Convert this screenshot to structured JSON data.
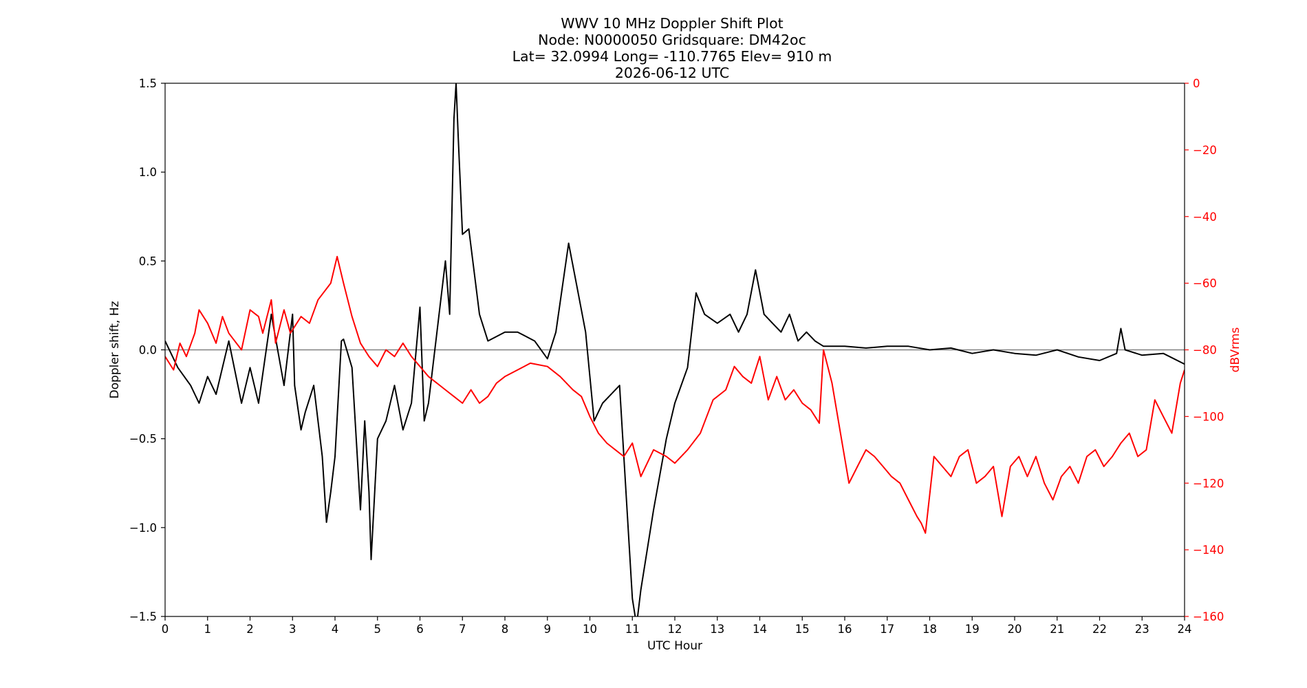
{
  "chart_data": {
    "type": "line",
    "title_lines": [
      "WWV 10 MHz Doppler Shift Plot",
      "Node:  N0000050     Gridsquare:  DM42oc",
      "Lat= 32.0994    Long= -110.7765    Elev= 910 m",
      "2026-06-12  UTC"
    ],
    "xlabel": "UTC Hour",
    "ylabel_left": "Doppler shift, Hz",
    "ylabel_right": "dBVrms",
    "xlim": [
      0,
      24
    ],
    "ylim_left": [
      -1.5,
      1.5
    ],
    "ylim_right": [
      -160,
      0
    ],
    "x_ticks": [
      "0",
      "1",
      "2",
      "3",
      "4",
      "5",
      "6",
      "7",
      "8",
      "9",
      "10",
      "11",
      "12",
      "13",
      "14",
      "15",
      "16",
      "17",
      "18",
      "19",
      "20",
      "21",
      "22",
      "23",
      "24"
    ],
    "y_ticks_left": [
      "1.5",
      "1.0",
      "0.5",
      "0.0",
      "−0.5",
      "−1.0",
      "−1.5"
    ],
    "y_ticks_right": [
      "0",
      "−20",
      "−40",
      "−60",
      "−80",
      "−100",
      "−120",
      "−140",
      "−160"
    ],
    "zero_line": 0.0,
    "colors": {
      "doppler": "#000000",
      "power": "#ff0000",
      "zero_line": "#808080"
    },
    "series": [
      {
        "axis": "left",
        "x": [
          0,
          0.3,
          0.6,
          0.8,
          1,
          1.2,
          1.5,
          1.8,
          2,
          2.2,
          2.5,
          2.8,
          3,
          3.05,
          3.2,
          3.3,
          3.5,
          3.7,
          3.8,
          3.9,
          4,
          4.15,
          4.2,
          4.4,
          4.6,
          4.7,
          4.8,
          4.85,
          5,
          5.2,
          5.4,
          5.6,
          5.8,
          6,
          6.1,
          6.2,
          6.4,
          6.6,
          6.7,
          6.8,
          6.85,
          6.9,
          7,
          7.15,
          7.4,
          7.6,
          8,
          8.3,
          8.7,
          9,
          9.2,
          9.5,
          9.7,
          9.9,
          10.1,
          10.3,
          10.5,
          10.7,
          10.9,
          11.0,
          11.1,
          11.2,
          11.5,
          11.8,
          12,
          12.3,
          12.5,
          12.7,
          13,
          13.3,
          13.5,
          13.7,
          13.9,
          14.1,
          14.3,
          14.5,
          14.7,
          14.9,
          15.1,
          15.3,
          15.5,
          16,
          16.5,
          17,
          17.5,
          18,
          18.5,
          19,
          19.5,
          20,
          20.5,
          21,
          21.5,
          22,
          22.4,
          22.5,
          22.6,
          23,
          23.5,
          24
        ],
        "y": [
          0.05,
          -0.1,
          -0.2,
          -0.3,
          -0.15,
          -0.25,
          0.05,
          -0.3,
          -0.1,
          -0.3,
          0.2,
          -0.2,
          0.2,
          -0.2,
          -0.45,
          -0.35,
          -0.2,
          -0.6,
          -0.97,
          -0.8,
          -0.6,
          0.05,
          0.06,
          -0.1,
          -0.9,
          -0.4,
          -0.8,
          -1.18,
          -0.5,
          -0.4,
          -0.2,
          -0.45,
          -0.3,
          0.24,
          -0.4,
          -0.3,
          0.1,
          0.5,
          0.2,
          1.3,
          1.5,
          1.2,
          0.65,
          0.68,
          0.2,
          0.05,
          0.1,
          0.1,
          0.05,
          -0.05,
          0.1,
          0.6,
          0.35,
          0.1,
          -0.4,
          -0.3,
          -0.25,
          -0.2,
          -1.0,
          -1.4,
          -1.55,
          -1.35,
          -0.9,
          -0.5,
          -0.3,
          -0.1,
          0.32,
          0.2,
          0.15,
          0.2,
          0.1,
          0.2,
          0.45,
          0.2,
          0.15,
          0.1,
          0.2,
          0.05,
          0.1,
          0.05,
          0.02,
          0.02,
          0.01,
          0.02,
          0.02,
          0.0,
          0.01,
          -0.02,
          0.0,
          -0.02,
          -0.03,
          0.0,
          -0.04,
          -0.06,
          -0.02,
          0.12,
          0.0,
          -0.03,
          -0.02,
          -0.08
        ]
      },
      {
        "axis": "right",
        "x": [
          0,
          0.2,
          0.35,
          0.5,
          0.7,
          0.8,
          1,
          1.2,
          1.35,
          1.5,
          1.8,
          2,
          2.2,
          2.3,
          2.5,
          2.6,
          2.8,
          2.95,
          3.2,
          3.4,
          3.6,
          3.9,
          4.05,
          4.2,
          4.4,
          4.6,
          4.8,
          5,
          5.2,
          5.4,
          5.6,
          5.8,
          6,
          6.2,
          6.4,
          6.6,
          6.8,
          7,
          7.2,
          7.4,
          7.6,
          7.8,
          8,
          8.3,
          8.6,
          9,
          9.3,
          9.6,
          9.8,
          10,
          10.2,
          10.4,
          10.6,
          10.8,
          11,
          11.2,
          11.5,
          11.8,
          12,
          12.3,
          12.6,
          12.9,
          13.2,
          13.4,
          13.6,
          13.8,
          14,
          14.2,
          14.4,
          14.6,
          14.8,
          15,
          15.2,
          15.4,
          15.5,
          15.7,
          15.9,
          16.1,
          16.3,
          16.5,
          16.7,
          16.9,
          17.1,
          17.3,
          17.5,
          17.7,
          17.8,
          17.9,
          18.1,
          18.3,
          18.5,
          18.7,
          18.9,
          19.1,
          19.3,
          19.5,
          19.7,
          19.9,
          20.1,
          20.3,
          20.5,
          20.7,
          20.9,
          21.1,
          21.3,
          21.5,
          21.7,
          21.9,
          22.1,
          22.3,
          22.5,
          22.7,
          22.9,
          23.1,
          23.3,
          23.5,
          23.7,
          23.9,
          24
        ],
        "y": [
          -82,
          -86,
          -78,
          -82,
          -75,
          -68,
          -72,
          -78,
          -70,
          -75,
          -80,
          -68,
          -70,
          -75,
          -65,
          -78,
          -68,
          -75,
          -70,
          -72,
          -65,
          -60,
          -52,
          -60,
          -70,
          -78,
          -82,
          -85,
          -80,
          -82,
          -78,
          -82,
          -85,
          -88,
          -90,
          -92,
          -94,
          -96,
          -92,
          -96,
          -94,
          -90,
          -88,
          -86,
          -84,
          -85,
          -88,
          -92,
          -94,
          -100,
          -105,
          -108,
          -110,
          -112,
          -108,
          -118,
          -110,
          -112,
          -114,
          -110,
          -105,
          -95,
          -92,
          -85,
          -88,
          -90,
          -82,
          -95,
          -88,
          -95,
          -92,
          -96,
          -98,
          -102,
          -80,
          -90,
          -105,
          -120,
          -115,
          -110,
          -112,
          -115,
          -118,
          -120,
          -125,
          -130,
          -132,
          -135,
          -112,
          -115,
          -118,
          -112,
          -110,
          -120,
          -118,
          -115,
          -130,
          -115,
          -112,
          -118,
          -112,
          -120,
          -125,
          -118,
          -115,
          -120,
          -112,
          -110,
          -115,
          -112,
          -108,
          -105,
          -112,
          -110,
          -95,
          -100,
          -105,
          -90,
          -86
        ]
      }
    ]
  }
}
